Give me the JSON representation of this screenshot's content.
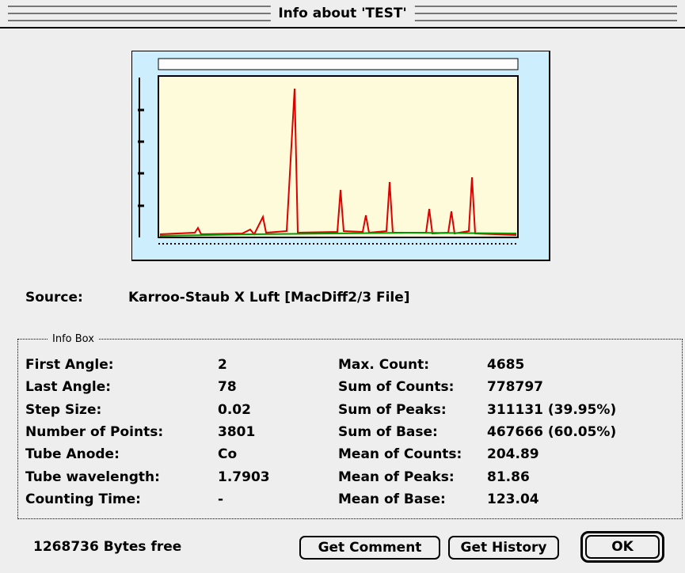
{
  "window": {
    "title": "Info about 'TEST'"
  },
  "source": {
    "label": "Source:",
    "value": "Karroo-Staub X Luft [MacDiff2/3 File]"
  },
  "info_box": {
    "title": "Info Box",
    "left": [
      {
        "label": "First Angle:",
        "value": "2"
      },
      {
        "label": "Last Angle:",
        "value": "78"
      },
      {
        "label": "Step Size:",
        "value": "0.02"
      },
      {
        "label": "Number of Points:",
        "value": "3801"
      },
      {
        "label": "Tube Anode:",
        "value": "Co"
      },
      {
        "label": "Tube wavelength:",
        "value": "1.7903"
      },
      {
        "label": "Counting Time:",
        "value": "-"
      }
    ],
    "right": [
      {
        "label": "Max. Count:",
        "value": "4685"
      },
      {
        "label": "Sum of Counts:",
        "value": "778797"
      },
      {
        "label": "Sum of Peaks:",
        "value": "311131 (39.95%)"
      },
      {
        "label": "Sum of Base:",
        "value": "467666 (60.05%)"
      },
      {
        "label": "Mean of Counts:",
        "value": "204.89"
      },
      {
        "label": "Mean of Peaks:",
        "value": "81.86"
      },
      {
        "label": "Mean of Base:",
        "value": "123.04"
      }
    ]
  },
  "footer": {
    "free_memory": "1268736 Bytes free"
  },
  "buttons": [
    "Get Comment",
    "Get History",
    "OK"
  ]
}
